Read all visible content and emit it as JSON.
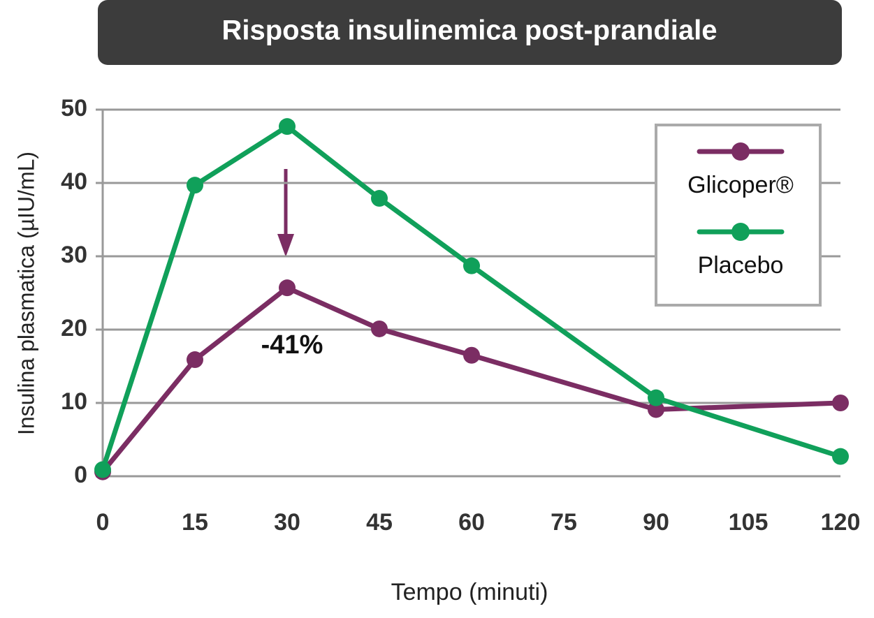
{
  "chart_data": {
    "type": "line",
    "title": "Risposta insulinemica post-prandiale",
    "x_label": "Tempo (minuti)",
    "y_label": "Insulina plasmatica (µIU/mL)",
    "x": [
      0,
      15,
      30,
      45,
      60,
      90,
      120
    ],
    "series": [
      {
        "name": "Glicoper®",
        "color": "#7b2d63",
        "values": [
          0.6,
          15.9,
          25.7,
          20.1,
          16.5,
          9.1,
          10.0
        ]
      },
      {
        "name": "Placebo",
        "color": "#10a05a",
        "values": [
          0.9,
          39.7,
          47.7,
          37.9,
          28.7,
          10.7,
          2.7
        ]
      }
    ],
    "xlim": [
      0,
      120
    ],
    "xticks": [
      0,
      15,
      30,
      45,
      60,
      75,
      90,
      105,
      120
    ],
    "ylim": [
      0,
      50
    ],
    "yticks": [
      0,
      10,
      20,
      30,
      40,
      50
    ],
    "grid": true,
    "legend": "upper right",
    "annotation": "-41%"
  }
}
